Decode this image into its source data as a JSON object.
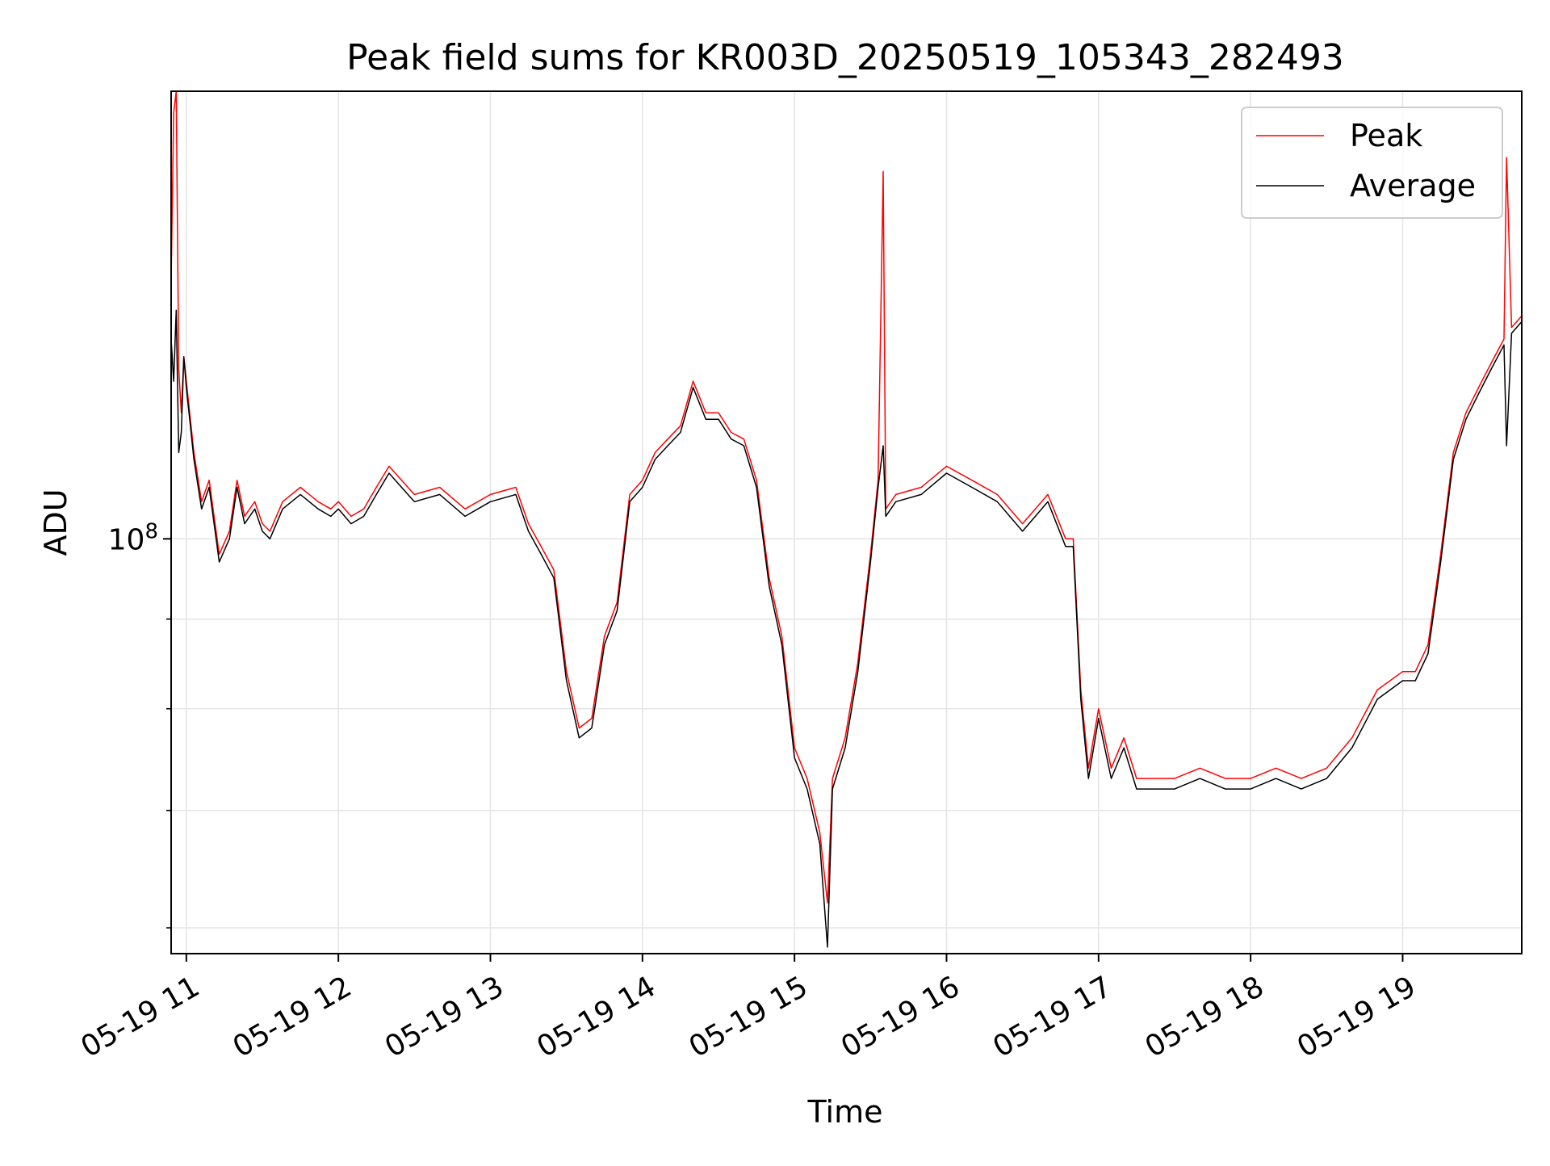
{
  "chart_data": {
    "type": "line",
    "title": "Peak field sums for KR003D_20250519_105343_282493",
    "xlabel": "Time",
    "ylabel": "ADU",
    "x_scale": "time",
    "y_scale": "log",
    "xlim": [
      "2025-05-19 10:54",
      "2025-05-19 19:47"
    ],
    "ylim": [
      58000000,
      180000000
    ],
    "grid": true,
    "legend_position": "top-right",
    "x_ticks": [
      {
        "time": "2025-05-19 11:00",
        "label": "05-19 11"
      },
      {
        "time": "2025-05-19 12:00",
        "label": "05-19 12"
      },
      {
        "time": "2025-05-19 13:00",
        "label": "05-19 13"
      },
      {
        "time": "2025-05-19 14:00",
        "label": "05-19 14"
      },
      {
        "time": "2025-05-19 15:00",
        "label": "05-19 15"
      },
      {
        "time": "2025-05-19 16:00",
        "label": "05-19 16"
      },
      {
        "time": "2025-05-19 17:00",
        "label": "05-19 17"
      },
      {
        "time": "2025-05-19 18:00",
        "label": "05-19 18"
      },
      {
        "time": "2025-05-19 19:00",
        "label": "05-19 19"
      }
    ],
    "y_major_ticks": [
      {
        "value": 100000000,
        "label_base": "10",
        "label_exp": "8"
      }
    ],
    "y_minor_ticks": [
      60000000,
      70000000,
      80000000,
      90000000
    ],
    "series": [
      {
        "name": "Peak",
        "color": "#ff0000",
        "x": [
          "2025-05-19 10:54",
          "2025-05-19 10:55",
          "2025-05-19 10:56",
          "2025-05-19 10:57",
          "2025-05-19 10:58",
          "2025-05-19 10:59",
          "2025-05-19 11:00",
          "2025-05-19 11:03",
          "2025-05-19 11:06",
          "2025-05-19 11:09",
          "2025-05-19 11:13",
          "2025-05-19 11:17",
          "2025-05-19 11:20",
          "2025-05-19 11:23",
          "2025-05-19 11:27",
          "2025-05-19 11:30",
          "2025-05-19 11:33",
          "2025-05-19 11:38",
          "2025-05-19 11:45",
          "2025-05-19 11:52",
          "2025-05-19 11:57",
          "2025-05-19 12:00",
          "2025-05-19 12:05",
          "2025-05-19 12:10",
          "2025-05-19 12:15",
          "2025-05-19 12:20",
          "2025-05-19 12:30",
          "2025-05-19 12:40",
          "2025-05-19 12:50",
          "2025-05-19 13:00",
          "2025-05-19 13:10",
          "2025-05-19 13:15",
          "2025-05-19 13:20",
          "2025-05-19 13:25",
          "2025-05-19 13:30",
          "2025-05-19 13:35",
          "2025-05-19 13:40",
          "2025-05-19 13:45",
          "2025-05-19 13:50",
          "2025-05-19 13:55",
          "2025-05-19 14:00",
          "2025-05-19 14:05",
          "2025-05-19 14:10",
          "2025-05-19 14:15",
          "2025-05-19 14:20",
          "2025-05-19 14:25",
          "2025-05-19 14:30",
          "2025-05-19 14:35",
          "2025-05-19 14:40",
          "2025-05-19 14:45",
          "2025-05-19 14:50",
          "2025-05-19 14:55",
          "2025-05-19 15:00",
          "2025-05-19 15:05",
          "2025-05-19 15:10",
          "2025-05-19 15:13",
          "2025-05-19 15:15",
          "2025-05-19 15:20",
          "2025-05-19 15:25",
          "2025-05-19 15:30",
          "2025-05-19 15:33",
          "2025-05-19 15:35",
          "2025-05-19 15:36",
          "2025-05-19 15:40",
          "2025-05-19 15:50",
          "2025-05-19 16:00",
          "2025-05-19 16:10",
          "2025-05-19 16:20",
          "2025-05-19 16:30",
          "2025-05-19 16:40",
          "2025-05-19 16:47",
          "2025-05-19 16:50",
          "2025-05-19 16:53",
          "2025-05-19 16:56",
          "2025-05-19 17:00",
          "2025-05-19 17:05",
          "2025-05-19 17:10",
          "2025-05-19 17:15",
          "2025-05-19 17:20",
          "2025-05-19 17:30",
          "2025-05-19 17:40",
          "2025-05-19 17:50",
          "2025-05-19 18:00",
          "2025-05-19 18:10",
          "2025-05-19 18:20",
          "2025-05-19 18:30",
          "2025-05-19 18:40",
          "2025-05-19 18:50",
          "2025-05-19 19:00",
          "2025-05-19 19:05",
          "2025-05-19 19:10",
          "2025-05-19 19:15",
          "2025-05-19 19:20",
          "2025-05-19 19:25",
          "2025-05-19 19:30",
          "2025-05-19 19:35",
          "2025-05-19 19:40",
          "2025-05-19 19:41",
          "2025-05-19 19:43",
          "2025-05-19 19:47"
        ],
        "y": [
          140000000,
          175000000,
          180000000,
          125000000,
          118000000,
          127000000,
          123000000,
          112000000,
          105000000,
          108000000,
          98000000,
          101000000,
          108000000,
          103000000,
          105000000,
          102000000,
          101000000,
          105000000,
          107000000,
          105000000,
          104000000,
          105000000,
          103000000,
          104000000,
          107000000,
          110000000,
          106000000,
          107000000,
          104000000,
          106000000,
          107000000,
          102000000,
          99000000,
          96000000,
          84000000,
          78000000,
          79000000,
          88000000,
          92000000,
          106000000,
          108000000,
          112000000,
          114000000,
          116000000,
          123000000,
          118000000,
          118000000,
          115000000,
          114000000,
          108000000,
          95000000,
          88000000,
          76000000,
          73000000,
          68000000,
          62000000,
          73000000,
          77000000,
          85000000,
          98000000,
          108000000,
          162000000,
          104000000,
          106000000,
          107000000,
          110000000,
          108000000,
          106000000,
          102000000,
          106000000,
          100000000,
          100000000,
          82000000,
          74000000,
          80000000,
          74000000,
          77000000,
          73000000,
          73000000,
          73000000,
          74000000,
          73000000,
          73000000,
          74000000,
          73000000,
          74000000,
          77000000,
          82000000,
          84000000,
          84000000,
          87000000,
          98000000,
          112000000,
          118000000,
          122000000,
          126000000,
          130000000,
          165000000,
          132000000,
          134000000
        ]
      },
      {
        "name": "Average",
        "color": "#000000",
        "x": [
          "2025-05-19 10:54",
          "2025-05-19 10:55",
          "2025-05-19 10:56",
          "2025-05-19 10:57",
          "2025-05-19 10:58",
          "2025-05-19 10:59",
          "2025-05-19 11:00",
          "2025-05-19 11:03",
          "2025-05-19 11:06",
          "2025-05-19 11:09",
          "2025-05-19 11:13",
          "2025-05-19 11:17",
          "2025-05-19 11:20",
          "2025-05-19 11:23",
          "2025-05-19 11:27",
          "2025-05-19 11:30",
          "2025-05-19 11:33",
          "2025-05-19 11:38",
          "2025-05-19 11:45",
          "2025-05-19 11:52",
          "2025-05-19 11:57",
          "2025-05-19 12:00",
          "2025-05-19 12:05",
          "2025-05-19 12:10",
          "2025-05-19 12:15",
          "2025-05-19 12:20",
          "2025-05-19 12:30",
          "2025-05-19 12:40",
          "2025-05-19 12:50",
          "2025-05-19 13:00",
          "2025-05-19 13:10",
          "2025-05-19 13:15",
          "2025-05-19 13:20",
          "2025-05-19 13:25",
          "2025-05-19 13:30",
          "2025-05-19 13:35",
          "2025-05-19 13:40",
          "2025-05-19 13:45",
          "2025-05-19 13:50",
          "2025-05-19 13:55",
          "2025-05-19 14:00",
          "2025-05-19 14:05",
          "2025-05-19 14:10",
          "2025-05-19 14:15",
          "2025-05-19 14:20",
          "2025-05-19 14:25",
          "2025-05-19 14:30",
          "2025-05-19 14:35",
          "2025-05-19 14:40",
          "2025-05-19 14:45",
          "2025-05-19 14:50",
          "2025-05-19 14:55",
          "2025-05-19 15:00",
          "2025-05-19 15:05",
          "2025-05-19 15:10",
          "2025-05-19 15:13",
          "2025-05-19 15:15",
          "2025-05-19 15:20",
          "2025-05-19 15:25",
          "2025-05-19 15:30",
          "2025-05-19 15:33",
          "2025-05-19 15:35",
          "2025-05-19 15:36",
          "2025-05-19 15:40",
          "2025-05-19 15:50",
          "2025-05-19 16:00",
          "2025-05-19 16:10",
          "2025-05-19 16:20",
          "2025-05-19 16:30",
          "2025-05-19 16:40",
          "2025-05-19 16:47",
          "2025-05-19 16:50",
          "2025-05-19 16:53",
          "2025-05-19 16:56",
          "2025-05-19 17:00",
          "2025-05-19 17:05",
          "2025-05-19 17:10",
          "2025-05-19 17:15",
          "2025-05-19 17:20",
          "2025-05-19 17:30",
          "2025-05-19 17:40",
          "2025-05-19 17:50",
          "2025-05-19 18:00",
          "2025-05-19 18:10",
          "2025-05-19 18:20",
          "2025-05-19 18:30",
          "2025-05-19 18:40",
          "2025-05-19 18:50",
          "2025-05-19 19:00",
          "2025-05-19 19:05",
          "2025-05-19 19:10",
          "2025-05-19 19:15",
          "2025-05-19 19:20",
          "2025-05-19 19:25",
          "2025-05-19 19:30",
          "2025-05-19 19:35",
          "2025-05-19 19:40",
          "2025-05-19 19:41",
          "2025-05-19 19:43",
          "2025-05-19 19:47"
        ],
        "y": [
          130000000,
          123000000,
          135000000,
          112000000,
          115000000,
          127000000,
          122000000,
          111000000,
          104000000,
          107000000,
          97000000,
          100000000,
          107000000,
          102000000,
          104000000,
          101000000,
          100000000,
          104000000,
          106000000,
          104000000,
          103000000,
          104000000,
          102000000,
          103000000,
          106000000,
          109000000,
          105000000,
          106000000,
          103000000,
          105000000,
          106000000,
          101000000,
          98000000,
          95000000,
          83000000,
          77000000,
          78000000,
          87000000,
          91000000,
          105000000,
          107000000,
          111000000,
          113000000,
          115000000,
          122000000,
          117000000,
          117000000,
          114000000,
          113000000,
          107000000,
          94000000,
          87000000,
          75000000,
          72000000,
          67000000,
          58500000,
          72000000,
          76000000,
          84000000,
          97000000,
          107000000,
          113000000,
          103000000,
          105000000,
          106000000,
          109000000,
          107000000,
          105000000,
          101000000,
          105000000,
          99000000,
          99000000,
          81000000,
          73000000,
          79000000,
          73000000,
          76000000,
          72000000,
          72000000,
          72000000,
          73000000,
          72000000,
          72000000,
          73000000,
          72000000,
          73000000,
          76000000,
          81000000,
          83000000,
          83000000,
          86000000,
          97000000,
          111000000,
          117000000,
          121000000,
          125000000,
          129000000,
          113000000,
          131000000,
          133000000
        ]
      }
    ]
  }
}
